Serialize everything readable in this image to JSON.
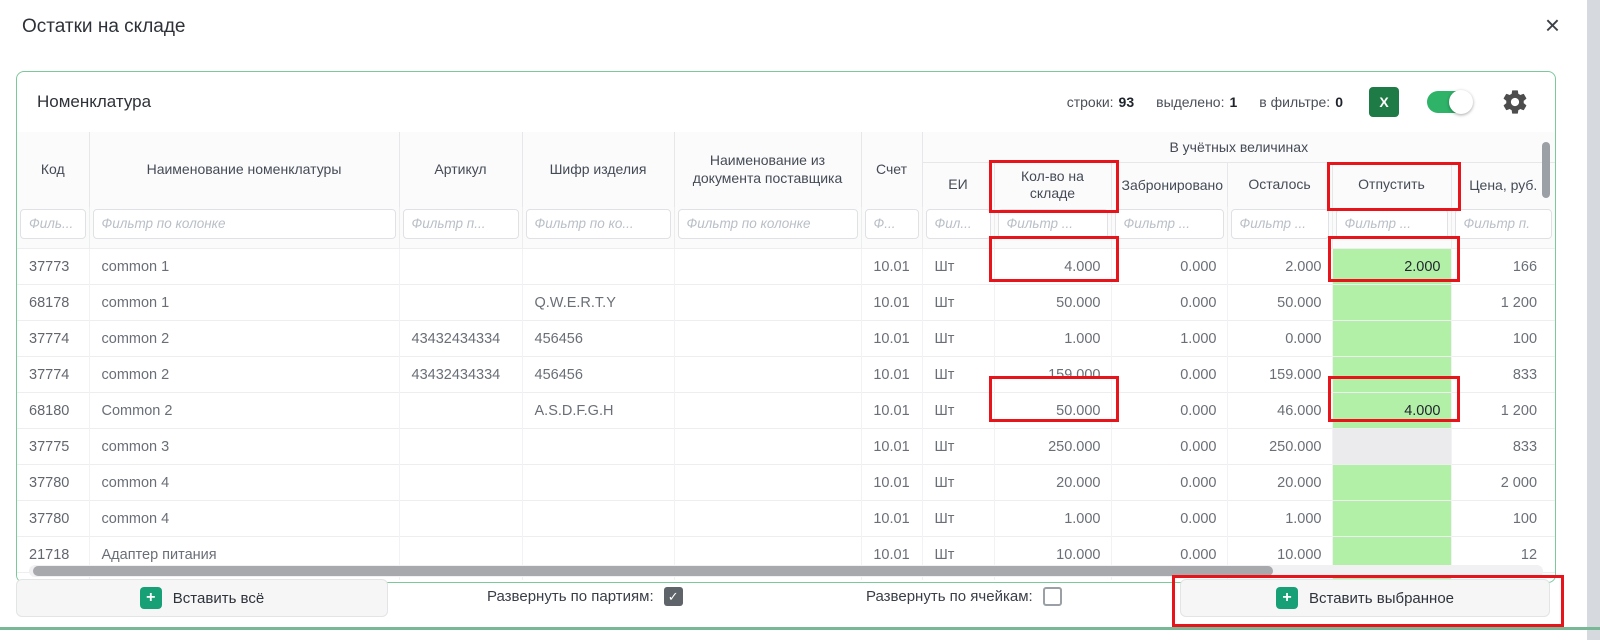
{
  "modal": {
    "title": "Остатки на складе"
  },
  "icons": {
    "close": "×",
    "excel": "X",
    "plus": "+",
    "check": "✓",
    "toggle_state": "on"
  },
  "colors": {
    "accent_green": "#1e7b46",
    "toggle_green": "#2eb368",
    "highlight_green": "#b2f0a7",
    "annotation_red": "#e8141b",
    "panel_border": "#7cc89a"
  },
  "panel": {
    "title": "Номенклатура",
    "stats": [
      {
        "label": "строки:",
        "value": "93"
      },
      {
        "label": "выделено:",
        "value": "1"
      },
      {
        "label": "в фильтре:",
        "value": "0"
      }
    ]
  },
  "table": {
    "group_header": "В учётных величинах",
    "columns": [
      {
        "label": "Код",
        "placeholder": "Филь..."
      },
      {
        "label": "Наименование номенклатуры",
        "placeholder": "Фильтр по колонке"
      },
      {
        "label": "Артикул",
        "placeholder": "Фильтр п..."
      },
      {
        "label": "Шифр изделия",
        "placeholder": "Фильтр по ко..."
      },
      {
        "label": "Наименование из документа поставщика",
        "placeholder": "Фильтр по колонке"
      },
      {
        "label": "Счет",
        "placeholder": "Ф..."
      },
      {
        "label": "ЕИ",
        "placeholder": "Фил..."
      },
      {
        "label": "Кол-во на складе",
        "placeholder": "Фильтр ..."
      },
      {
        "label": "Забронировано",
        "placeholder": "Фильтр ..."
      },
      {
        "label": "Осталось",
        "placeholder": "Фильтр ..."
      },
      {
        "label": "Отпустить",
        "placeholder": "Фильтр ..."
      },
      {
        "label": "Цена, руб.",
        "placeholder": "Фильтр п."
      }
    ],
    "rows": [
      {
        "code": "37773",
        "name": "common 1",
        "article": "",
        "product_code": "",
        "supplier_name": "",
        "account": "10.01",
        "unit": "Шт",
        "qty": "4.000",
        "reserved": "0.000",
        "remaining": "2.000",
        "release": "2.000",
        "price": "166",
        "release_state": "green"
      },
      {
        "code": "68178",
        "name": "common 1",
        "article": "",
        "product_code": "Q.W.E.R.T.Y",
        "supplier_name": "",
        "account": "10.01",
        "unit": "Шт",
        "qty": "50.000",
        "reserved": "0.000",
        "remaining": "50.000",
        "release": "",
        "price": "1 200",
        "release_state": "green"
      },
      {
        "code": "37774",
        "name": "common 2",
        "article": "43432434334",
        "product_code": "456456",
        "supplier_name": "",
        "account": "10.01",
        "unit": "Шт",
        "qty": "1.000",
        "reserved": "1.000",
        "remaining": "0.000",
        "release": "",
        "price": "100",
        "release_state": "green"
      },
      {
        "code": "37774",
        "name": "common 2",
        "article": "43432434334",
        "product_code": "456456",
        "supplier_name": "",
        "account": "10.01",
        "unit": "Шт",
        "qty": "159.000",
        "reserved": "0.000",
        "remaining": "159.000",
        "release": "",
        "price": "833",
        "release_state": "green"
      },
      {
        "code": "68180",
        "name": "Common 2",
        "article": "",
        "product_code": "A.S.D.F.G.H",
        "supplier_name": "",
        "account": "10.01",
        "unit": "Шт",
        "qty": "50.000",
        "reserved": "0.000",
        "remaining": "46.000",
        "release": "4.000",
        "price": "1 200",
        "release_state": "green"
      },
      {
        "code": "37775",
        "name": "common 3",
        "article": "",
        "product_code": "",
        "supplier_name": "",
        "account": "10.01",
        "unit": "Шт",
        "qty": "250.000",
        "reserved": "0.000",
        "remaining": "250.000",
        "release": "",
        "price": "833",
        "release_state": "grey"
      },
      {
        "code": "37780",
        "name": "common 4",
        "article": "",
        "product_code": "",
        "supplier_name": "",
        "account": "10.01",
        "unit": "Шт",
        "qty": "20.000",
        "reserved": "0.000",
        "remaining": "20.000",
        "release": "",
        "price": "2 000",
        "release_state": "green"
      },
      {
        "code": "37780",
        "name": "common 4",
        "article": "",
        "product_code": "",
        "supplier_name": "",
        "account": "10.01",
        "unit": "Шт",
        "qty": "1.000",
        "reserved": "0.000",
        "remaining": "1.000",
        "release": "",
        "price": "100",
        "release_state": "green"
      },
      {
        "code": "21718",
        "name": "Адаптер питания",
        "article": "",
        "product_code": "",
        "supplier_name": "",
        "account": "10.01",
        "unit": "Шт",
        "qty": "10.000",
        "reserved": "0.000",
        "remaining": "10.000",
        "release": "",
        "price": "12",
        "release_state": "green"
      }
    ]
  },
  "footer": {
    "insert_all_label": "Вставить всё",
    "expand_batches_label": "Развернуть по партиям:",
    "expand_batches_checked": true,
    "expand_cells_label": "Развернуть по ячейкам:",
    "expand_cells_checked": false,
    "insert_selected_label": "Вставить выбранное"
  }
}
